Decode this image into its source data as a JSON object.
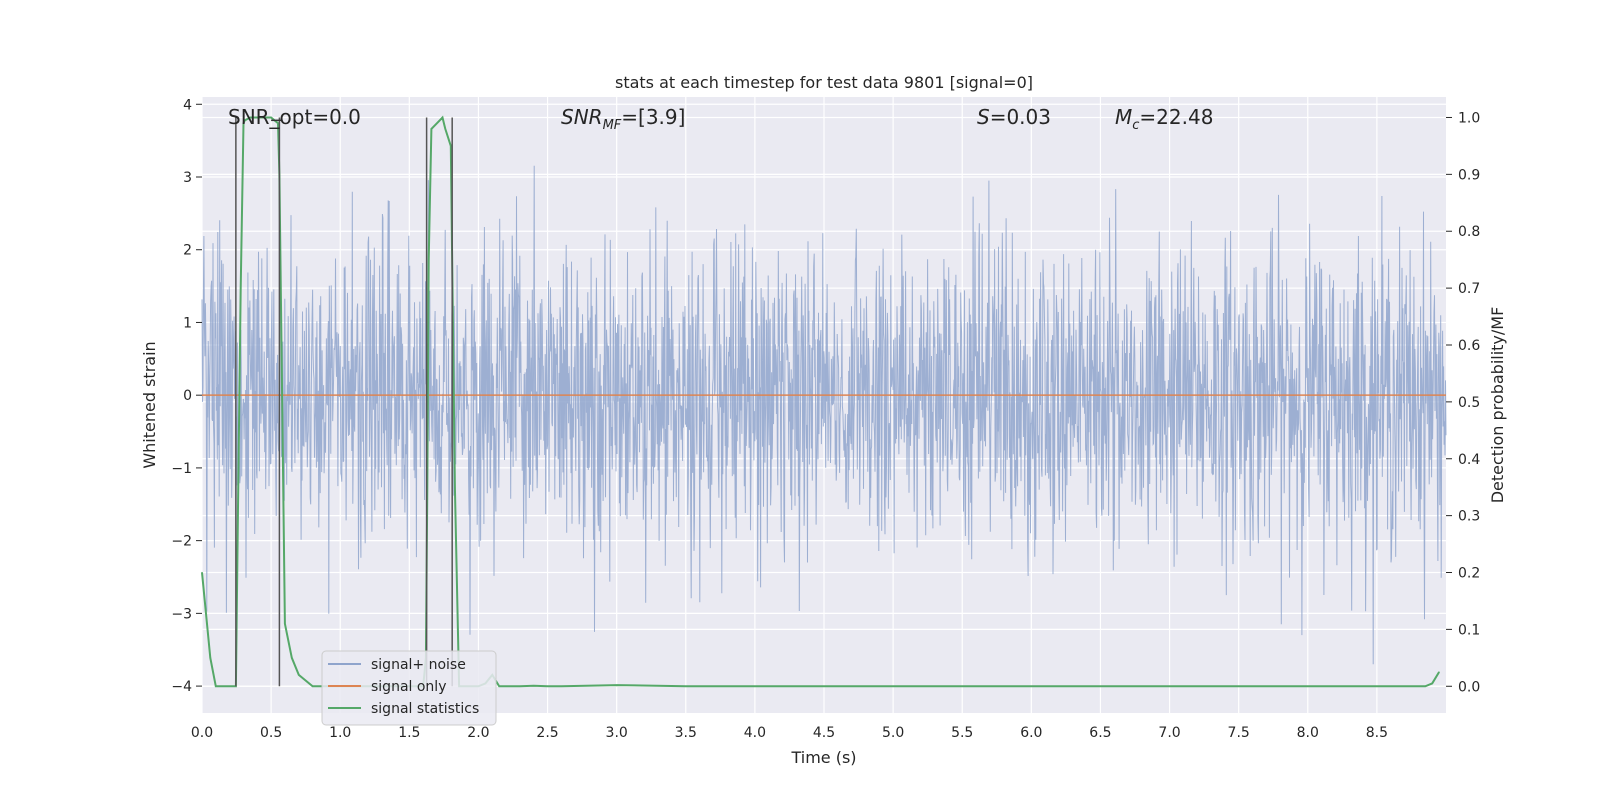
{
  "chart_data": {
    "type": "line",
    "title": "stats at each timestep for test data 9801 [signal=0]",
    "xlabel": "Time (s)",
    "ylabel_left": "Whitened strain",
    "ylabel_right": "Detection probability/MF",
    "xlim": [
      0.0,
      9.0
    ],
    "ylim_left": [
      -4.37,
      4.1
    ],
    "ylim_right": [
      -0.047,
      1.036
    ],
    "xticks": [
      "0.0",
      "0.5",
      "1.0",
      "1.5",
      "2.0",
      "2.5",
      "3.0",
      "3.5",
      "4.0",
      "4.5",
      "5.0",
      "5.5",
      "6.0",
      "6.5",
      "7.0",
      "7.5",
      "8.0",
      "8.5"
    ],
    "yticks_left": [
      "4",
      "3",
      "2",
      "1",
      "0",
      "−1",
      "−2",
      "−3",
      "−4"
    ],
    "yticks_right": [
      "1.0",
      "0.9",
      "0.8",
      "0.7",
      "0.6",
      "0.5",
      "0.4",
      "0.3",
      "0.2",
      "0.1",
      "0.0"
    ],
    "annotations": {
      "snr_opt": "SNR_opt=0.0",
      "snr_mf_main": "SNR",
      "snr_mf_sub": "MF",
      "snr_mf_value": "=[3.9]",
      "s_symbol": "S",
      "s_value": "=0.03",
      "mc_symbol": "M",
      "mc_sub": "c",
      "mc_value": "=22.48"
    },
    "series": [
      {
        "name": "signal+ noise",
        "color": "#8fa4cc",
        "kind": "noise",
        "amplitude_range": [
          -3.7,
          3.7
        ],
        "typical_range": [
          -1.7,
          1.7
        ]
      },
      {
        "name": "signal only",
        "color": "#dd8452",
        "values_const": 0.0
      },
      {
        "name": "signal statistics",
        "color": "#55a868",
        "x": [
          0.0,
          0.06,
          0.1,
          0.15,
          0.2,
          0.245,
          0.26,
          0.28,
          0.3,
          0.31,
          0.35,
          0.4,
          0.45,
          0.5,
          0.55,
          0.56,
          0.6,
          0.65,
          0.7,
          0.8,
          0.9,
          1.0,
          1.2,
          1.4,
          1.6,
          1.62,
          1.63,
          1.64,
          1.66,
          1.7,
          1.74,
          1.76,
          1.8,
          1.83,
          1.86,
          1.9,
          2.0,
          2.05,
          2.1,
          2.15,
          2.2,
          2.3,
          2.4,
          2.5,
          2.6,
          3.0,
          3.5,
          4.0,
          5.0,
          6.0,
          7.0,
          8.0,
          8.85,
          8.9,
          8.95
        ],
        "values": [
          0.2,
          0.05,
          0.0,
          0.0,
          0.0,
          0.0,
          0.3,
          0.7,
          0.99,
          0.995,
          1.0,
          1.0,
          1.0,
          1.0,
          0.99,
          0.9,
          0.11,
          0.05,
          0.02,
          0.0,
          0.0,
          0.0,
          0.0,
          0.0,
          0.0,
          0.05,
          0.35,
          0.75,
          0.98,
          0.99,
          1.0,
          0.98,
          0.95,
          0.35,
          0.0,
          0.0,
          0.0,
          0.005,
          0.02,
          0.0,
          0.0,
          0.0,
          0.001,
          0.0,
          0.0,
          0.002,
          0.0,
          0.0,
          0.0,
          0.0,
          0.0,
          0.0,
          0.0,
          0.005,
          0.025
        ]
      }
    ],
    "vlines": [
      {
        "x": 0.245,
        "y_from": 0.0,
        "y_to": 1.0
      },
      {
        "x": 0.56,
        "y_from": 0.0,
        "y_to": 1.0
      },
      {
        "x": 1.625,
        "y_from": 0.0,
        "y_to": 1.0
      },
      {
        "x": 1.81,
        "y_from": 0.0,
        "y_to": 1.0
      }
    ],
    "hlines": [
      {
        "x_from": 0.5,
        "x_to": 0.58,
        "y": 0.995
      }
    ],
    "legend": {
      "placement": "lower-left",
      "entries": [
        "signal+ noise",
        "signal only",
        "signal statistics"
      ]
    }
  }
}
